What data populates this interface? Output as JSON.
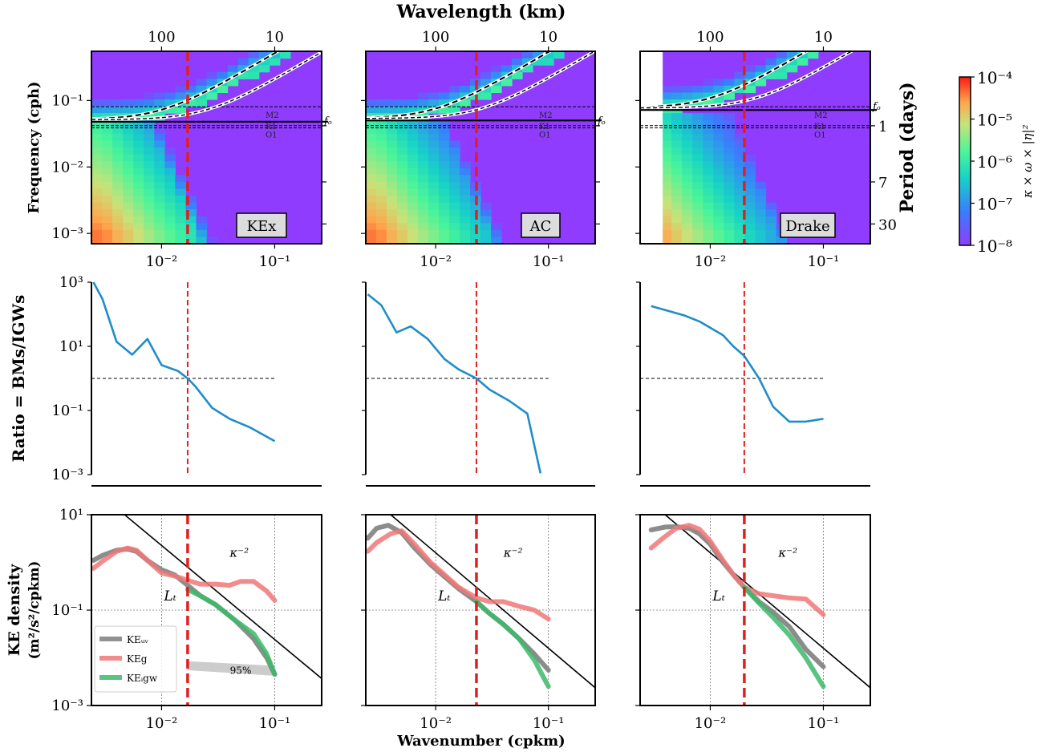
{
  "texts": {
    "top_axis_label": "Wavelength (km)",
    "bottom_axis_label": "Wavenumber (cpkm)",
    "row1_ylabel": "Frequency (cph)",
    "row1_ylabel_right": "Period (days)",
    "row2_ylabel": "Ratio = BMs/IGWs",
    "row3_ylabel_line1": "KE density",
    "row3_ylabel_line2": "(m²/s²/cpkm)",
    "colorbar_label": "κ × ω × |η|²",
    "fo": "fₒ",
    "m2": "M2",
    "k1": "K1",
    "o1": "O1",
    "kappa_slope": "κ⁻²",
    "Lt": "Lₜ",
    "pct95": "95%"
  },
  "ticks": {
    "wavelength": [
      "100",
      "10"
    ],
    "wavenumber": [
      "10⁻²",
      "10⁻¹"
    ],
    "freq": [
      "10⁻¹",
      "10⁻²",
      "10⁻³"
    ],
    "period": [
      "1",
      "7",
      "30"
    ],
    "ratio": [
      "10³",
      "10¹",
      "10⁻¹",
      "10⁻³"
    ],
    "ke": [
      "10¹",
      "10⁻¹",
      "10⁻³"
    ],
    "colorbar": [
      "10⁻⁴",
      "10⁻⁵",
      "10⁻⁶",
      "10⁻⁷",
      "10⁻⁸"
    ]
  },
  "legend": [
    "KEᵤᵥ",
    "KEg",
    "KEᵢgw"
  ],
  "colors": {
    "ratio_line": "#1f8dc8",
    "cutoff": "#e02020",
    "ke_uv": "#7f7f7f",
    "ke_g": "#f07878",
    "ke_igw": "#3cb96a",
    "background_spec": "#8f3cff"
  },
  "chart_data": [
    {
      "type": "heatmap",
      "panel": "KEx",
      "x_unit": "cpkm",
      "y_unit": "cph",
      "xlim": [
        0.0024,
        0.26
      ],
      "ylim": [
        0.0007,
        0.55
      ],
      "xscale": "log",
      "yscale": "log",
      "cutoff_wavenumber": 0.017,
      "tidal_lines": {
        "M2": 0.0805,
        "K1": 0.0418,
        "O1": 0.0387
      },
      "f0": 0.048
    },
    {
      "type": "heatmap",
      "panel": "AC",
      "x_unit": "cpkm",
      "y_unit": "cph",
      "xlim": [
        0.0024,
        0.26
      ],
      "ylim": [
        0.0007,
        0.55
      ],
      "xscale": "log",
      "yscale": "log",
      "cutoff_wavenumber": 0.023,
      "tidal_lines": {
        "M2": 0.0805,
        "K1": 0.0418,
        "O1": 0.0387
      },
      "f0": 0.05
    },
    {
      "type": "heatmap",
      "panel": "Drake",
      "x_unit": "cpkm",
      "y_unit": "cph",
      "xlim": [
        0.0024,
        0.26
      ],
      "ylim": [
        0.0007,
        0.55
      ],
      "xscale": "log",
      "yscale": "log",
      "cutoff_wavenumber": 0.02,
      "tidal_lines": {
        "M2": 0.0805,
        "K1": 0.0418,
        "O1": 0.0387
      },
      "f0": 0.072
    },
    {
      "type": "line",
      "panel": "KEx ratio",
      "ylim": [
        0.001,
        1000
      ],
      "yscale": "log",
      "xscale": "log",
      "x": [
        0.0025,
        0.003,
        0.004,
        0.0055,
        0.0075,
        0.01,
        0.014,
        0.017,
        0.02,
        0.028,
        0.04,
        0.06,
        0.1
      ],
      "y": [
        1000,
        300,
        14,
        5.5,
        17,
        2.6,
        1.7,
        1.0,
        0.55,
        0.12,
        0.055,
        0.03,
        0.011
      ],
      "reference_y": 1,
      "cutoff_wavenumber": 0.017
    },
    {
      "type": "line",
      "panel": "AC ratio",
      "ylim": [
        0.001,
        1000
      ],
      "yscale": "log",
      "xscale": "log",
      "x": [
        0.0025,
        0.0033,
        0.0045,
        0.006,
        0.0085,
        0.012,
        0.016,
        0.023,
        0.03,
        0.045,
        0.065,
        0.085
      ],
      "y": [
        420,
        190,
        27,
        42,
        17,
        4,
        1.9,
        1.0,
        0.45,
        0.2,
        0.08,
        0.0011
      ],
      "reference_y": 1,
      "cutoff_wavenumber": 0.023
    },
    {
      "type": "line",
      "panel": "Drake ratio",
      "ylim": [
        0.001,
        1000
      ],
      "yscale": "log",
      "xscale": "log",
      "x": [
        0.003,
        0.0045,
        0.006,
        0.008,
        0.01,
        0.013,
        0.016,
        0.02,
        0.027,
        0.036,
        0.05,
        0.07,
        0.1
      ],
      "y": [
        180,
        120,
        90,
        60,
        38,
        22,
        10,
        5,
        1.0,
        0.13,
        0.045,
        0.045,
        0.055
      ],
      "reference_y": 1,
      "cutoff_wavenumber": 0.02
    },
    {
      "type": "line",
      "panel": "KEx KE",
      "xlim": [
        0.0024,
        0.26
      ],
      "ylim": [
        0.001,
        10
      ],
      "xscale": "log",
      "yscale": "log",
      "series": [
        {
          "name": "KEᵤᵥ",
          "x": [
            0.0025,
            0.003,
            0.004,
            0.005,
            0.006,
            0.0075,
            0.01,
            0.013,
            0.017,
            0.022,
            0.03,
            0.045,
            0.065,
            0.085,
            0.1
          ],
          "y": [
            1.1,
            1.4,
            1.8,
            1.9,
            1.7,
            1.1,
            0.7,
            0.55,
            0.33,
            0.2,
            0.13,
            0.06,
            0.025,
            0.01,
            0.0045
          ]
        },
        {
          "name": "KEg",
          "x": [
            0.0025,
            0.003,
            0.004,
            0.005,
            0.006,
            0.0075,
            0.01,
            0.013,
            0.017,
            0.022,
            0.03,
            0.04,
            0.05,
            0.065,
            0.085,
            0.1
          ],
          "y": [
            0.75,
            1.05,
            1.7,
            2.0,
            1.8,
            1.1,
            0.6,
            0.52,
            0.42,
            0.35,
            0.35,
            0.33,
            0.4,
            0.4,
            0.25,
            0.16
          ]
        },
        {
          "name": "KEᵢgw",
          "x": [
            0.017,
            0.022,
            0.03,
            0.045,
            0.065,
            0.085,
            0.1
          ],
          "y": [
            0.27,
            0.2,
            0.13,
            0.06,
            0.032,
            0.012,
            0.0045
          ]
        }
      ],
      "reference_slope": -2,
      "cutoff_wavenumber": 0.017
    },
    {
      "type": "line",
      "panel": "AC KE",
      "xlim": [
        0.0024,
        0.26
      ],
      "ylim": [
        0.001,
        10
      ],
      "xscale": "log",
      "yscale": "log",
      "series": [
        {
          "name": "KEᵤᵥ",
          "x": [
            0.0025,
            0.003,
            0.0038,
            0.005,
            0.0065,
            0.009,
            0.012,
            0.016,
            0.023,
            0.03,
            0.04,
            0.055,
            0.075,
            0.1
          ],
          "y": [
            3.2,
            5.2,
            6.0,
            4.2,
            2.0,
            0.9,
            0.5,
            0.28,
            0.15,
            0.085,
            0.05,
            0.025,
            0.012,
            0.0055
          ]
        },
        {
          "name": "KEg",
          "x": [
            0.0025,
            0.003,
            0.004,
            0.005,
            0.0065,
            0.009,
            0.012,
            0.016,
            0.023,
            0.03,
            0.04,
            0.055,
            0.075,
            0.1
          ],
          "y": [
            1.7,
            2.6,
            4.0,
            4.6,
            2.4,
            1.0,
            0.55,
            0.3,
            0.18,
            0.15,
            0.15,
            0.12,
            0.1,
            0.065
          ]
        },
        {
          "name": "KEᵢgw",
          "x": [
            0.023,
            0.03,
            0.04,
            0.055,
            0.075,
            0.1
          ],
          "y": [
            0.15,
            0.085,
            0.05,
            0.025,
            0.009,
            0.0025
          ]
        }
      ],
      "reference_slope": -2,
      "cutoff_wavenumber": 0.023
    },
    {
      "type": "line",
      "panel": "Drake KE",
      "xlim": [
        0.0024,
        0.26
      ],
      "ylim": [
        0.001,
        10
      ],
      "xscale": "log",
      "yscale": "log",
      "series": [
        {
          "name": "KEᵤᵥ",
          "x": [
            0.003,
            0.004,
            0.005,
            0.0065,
            0.008,
            0.01,
            0.013,
            0.016,
            0.02,
            0.027,
            0.036,
            0.05,
            0.07,
            0.1
          ],
          "y": [
            4.8,
            5.5,
            5.6,
            5.2,
            4.0,
            2.4,
            1.0,
            0.55,
            0.3,
            0.15,
            0.09,
            0.045,
            0.015,
            0.0065
          ]
        },
        {
          "name": "KEg",
          "x": [
            0.003,
            0.004,
            0.005,
            0.0065,
            0.008,
            0.01,
            0.013,
            0.016,
            0.02,
            0.027,
            0.036,
            0.05,
            0.07,
            0.1
          ],
          "y": [
            2.0,
            3.5,
            5.2,
            6.0,
            5.0,
            2.8,
            1.1,
            0.55,
            0.3,
            0.22,
            0.2,
            0.18,
            0.17,
            0.08
          ]
        },
        {
          "name": "KEᵢgw",
          "x": [
            0.02,
            0.027,
            0.036,
            0.05,
            0.07,
            0.1
          ],
          "y": [
            0.3,
            0.14,
            0.07,
            0.03,
            0.01,
            0.0025
          ]
        }
      ],
      "reference_slope": -2,
      "cutoff_wavenumber": 0.02
    }
  ]
}
